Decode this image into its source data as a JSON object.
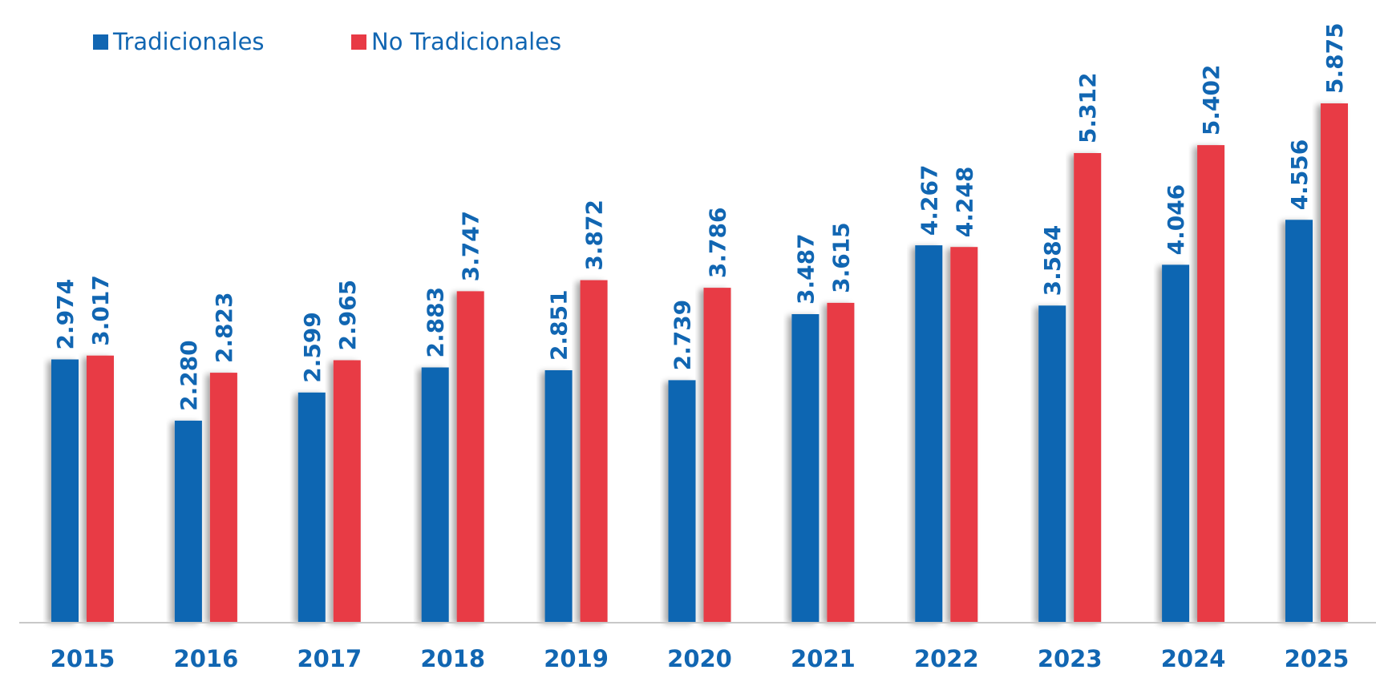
{
  "chart_data": {
    "type": "bar",
    "categories": [
      "2015",
      "2016",
      "2017",
      "2018",
      "2019",
      "2020",
      "2021",
      "2022",
      "2023",
      "2024",
      "2025"
    ],
    "series": [
      {
        "name": "Tradicionales",
        "color": "#1166B2",
        "values": [
          2.974,
          2.28,
          2.599,
          2.883,
          2.851,
          2.739,
          3.487,
          4.267,
          3.584,
          4.046,
          4.556
        ],
        "labels": [
          "2.974",
          "2.280",
          "2.599",
          "2.883",
          "2.851",
          "2.739",
          "3.487",
          "4.267",
          "3.584",
          "4.046",
          "4.556"
        ]
      },
      {
        "name": "No Tradicionales",
        "color": "#E83A45",
        "values": [
          3.017,
          2.823,
          2.965,
          3.747,
          3.872,
          3.786,
          3.615,
          4.248,
          5.312,
          5.402,
          5.875
        ],
        "labels": [
          "3.017",
          "2.823",
          "2.965",
          "3.747",
          "3.872",
          "3.786",
          "3.615",
          "4.248",
          "5.312",
          "5.402",
          "5.875"
        ]
      }
    ],
    "ylim": [
      0,
      6.2
    ],
    "label_color": "#1166B2",
    "axis_color": "#C8C8C8",
    "legend_position": "top-left",
    "grid": false,
    "title": "",
    "xlabel": "",
    "ylabel": ""
  }
}
